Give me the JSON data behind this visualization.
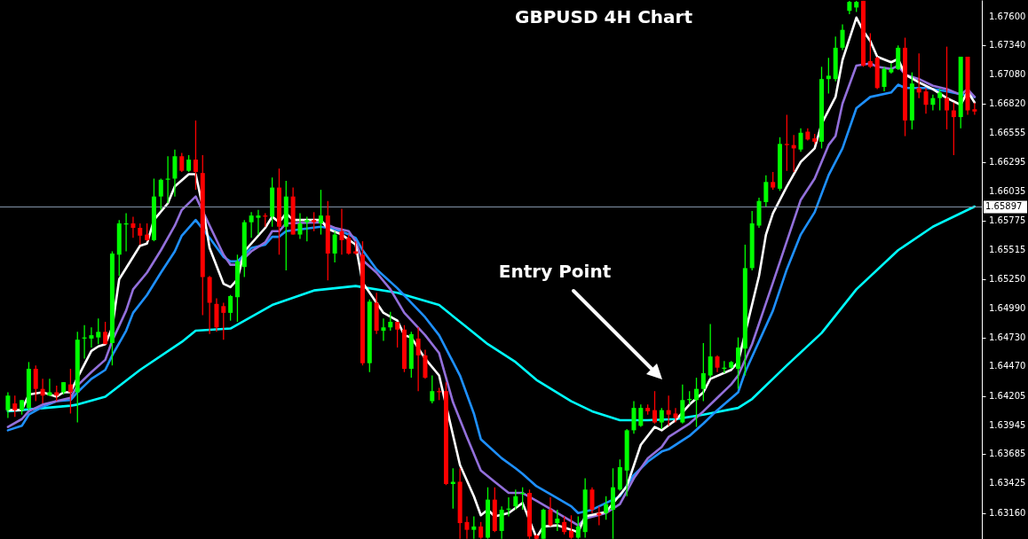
{
  "chart_data": {
    "type": "candlestick",
    "title": "GBPUSD  4H Chart",
    "annotations": [
      "Entry Point"
    ],
    "categories": [
      null,
      null,
      null,
      null,
      null,
      null,
      null,
      null,
      null,
      null,
      null,
      null,
      null,
      null,
      null,
      null,
      null,
      null,
      null,
      null,
      null,
      null,
      null,
      null,
      null,
      null,
      null,
      null,
      null,
      null,
      null,
      null,
      null,
      null,
      null,
      null,
      null,
      null,
      null,
      null,
      null,
      null,
      null,
      null,
      null,
      null,
      null,
      null,
      null,
      null,
      null,
      null,
      null,
      null,
      null,
      null,
      null,
      null,
      null,
      null,
      null,
      null,
      null,
      null,
      null,
      null,
      null,
      null,
      null,
      null,
      null,
      null,
      null,
      null,
      null,
      null,
      null,
      null,
      null,
      null,
      null,
      null,
      null,
      null,
      null,
      null,
      null,
      null,
      null,
      null,
      null,
      null,
      null,
      null,
      null,
      null,
      null,
      null,
      null,
      null,
      null,
      null,
      null,
      null,
      null,
      null,
      null,
      null,
      null,
      null,
      null,
      null,
      null,
      null,
      null,
      null,
      null,
      null,
      null,
      null,
      null,
      null,
      null,
      null,
      null,
      null,
      null,
      null,
      null,
      null,
      null,
      null,
      null,
      null,
      null,
      null,
      null,
      null,
      null,
      null
    ],
    "ohlc": [
      [
        1.6408,
        1.6424,
        1.6401,
        1.6421
      ],
      [
        1.6414,
        1.6421,
        1.6402,
        1.6408
      ],
      [
        1.6408,
        1.6417,
        1.6404,
        1.6417
      ],
      [
        1.641,
        1.6451,
        1.6408,
        1.6445
      ],
      [
        1.6445,
        1.6448,
        1.6416,
        1.6427
      ],
      [
        1.6427,
        1.6436,
        1.6414,
        1.6421
      ],
      [
        1.6421,
        1.6436,
        1.6421,
        1.6424
      ],
      [
        1.6424,
        1.643,
        1.6416,
        1.6421
      ],
      [
        1.6424,
        1.6433,
        1.6422,
        1.6433
      ],
      [
        1.6431,
        1.6445,
        1.6405,
        1.6424
      ],
      [
        1.6424,
        1.6478,
        1.6397,
        1.6471
      ],
      [
        1.6472,
        1.6484,
        1.6454,
        1.6473
      ],
      [
        1.6472,
        1.6482,
        1.6464,
        1.6475
      ],
      [
        1.6473,
        1.649,
        1.6467,
        1.6478
      ],
      [
        1.6478,
        1.6487,
        1.6467,
        1.6467
      ],
      [
        1.6468,
        1.655,
        1.6448,
        1.6548
      ],
      [
        1.6547,
        1.6578,
        1.6528,
        1.6575
      ],
      [
        1.6574,
        1.6584,
        1.655,
        1.6575
      ],
      [
        1.6575,
        1.6581,
        1.6562,
        1.6571
      ],
      [
        1.6571,
        1.6575,
        1.6556,
        1.6564
      ],
      [
        1.6565,
        1.6575,
        1.6559,
        1.656
      ],
      [
        1.656,
        1.6615,
        1.6559,
        1.6599
      ],
      [
        1.6599,
        1.6615,
        1.6587,
        1.6614
      ],
      [
        1.6614,
        1.6635,
        1.6593,
        1.6615
      ],
      [
        1.6615,
        1.6641,
        1.6599,
        1.6635
      ],
      [
        1.6635,
        1.6638,
        1.6621,
        1.6622
      ],
      [
        1.6622,
        1.6636,
        1.6621,
        1.6632
      ],
      [
        1.6632,
        1.6667,
        1.6605,
        1.6621
      ],
      [
        1.662,
        1.6636,
        1.6493,
        1.6527
      ],
      [
        1.6527,
        1.6528,
        1.6476,
        1.6504
      ],
      [
        1.6503,
        1.6508,
        1.6478,
        1.6482
      ],
      [
        1.6501,
        1.6504,
        1.6471,
        1.6495
      ],
      [
        1.6495,
        1.6511,
        1.6488,
        1.651
      ],
      [
        1.6509,
        1.6547,
        1.6487,
        1.6541
      ],
      [
        1.6536,
        1.6578,
        1.6527,
        1.6576
      ],
      [
        1.6576,
        1.6585,
        1.6562,
        1.6582
      ],
      [
        1.658,
        1.6587,
        1.6565,
        1.6582
      ],
      [
        1.6582,
        1.6584,
        1.6572,
        1.6581
      ],
      [
        1.6581,
        1.6616,
        1.6572,
        1.6607
      ],
      [
        1.6607,
        1.6624,
        1.6547,
        1.6572
      ],
      [
        1.6572,
        1.6613,
        1.6533,
        1.6599
      ],
      [
        1.6599,
        1.6607,
        1.6565,
        1.6565
      ],
      [
        1.6565,
        1.6584,
        1.6561,
        1.6575
      ],
      [
        1.6576,
        1.6581,
        1.6559,
        1.6578
      ],
      [
        1.6578,
        1.6585,
        1.6568,
        1.6576
      ],
      [
        1.6575,
        1.6605,
        1.6565,
        1.6582
      ],
      [
        1.6582,
        1.6595,
        1.6524,
        1.6548
      ],
      [
        1.6548,
        1.6568,
        1.654,
        1.6565
      ],
      [
        1.6568,
        1.6588,
        1.6547,
        1.656
      ],
      [
        1.6562,
        1.6565,
        1.6547,
        1.6548
      ],
      [
        1.655,
        1.6559,
        1.6547,
        1.6548
      ],
      [
        1.6547,
        1.6559,
        1.6448,
        1.645
      ],
      [
        1.645,
        1.6507,
        1.6442,
        1.6505
      ],
      [
        1.6504,
        1.6513,
        1.6476,
        1.6479
      ],
      [
        1.6479,
        1.649,
        1.647,
        1.6482
      ],
      [
        1.6482,
        1.6496,
        1.6479,
        1.6487
      ],
      [
        1.6487,
        1.6487,
        1.6464,
        1.648
      ],
      [
        1.648,
        1.6484,
        1.6442,
        1.6445
      ],
      [
        1.6445,
        1.6478,
        1.6437,
        1.6476
      ],
      [
        1.6472,
        1.6482,
        1.6425,
        1.6457
      ],
      [
        1.6457,
        1.6462,
        1.6436,
        1.6437
      ],
      [
        1.6416,
        1.6439,
        1.6414,
        1.6425
      ],
      [
        1.6425,
        1.6428,
        1.6417,
        1.6424
      ],
      [
        1.6425,
        1.6433,
        1.6341,
        1.6342
      ],
      [
        1.6342,
        1.6356,
        1.632,
        1.6344
      ],
      [
        1.6344,
        1.6356,
        1.6293,
        1.6307
      ],
      [
        1.6308,
        1.6313,
        1.6293,
        1.6301
      ],
      [
        1.6301,
        1.6313,
        1.6293,
        1.6304
      ],
      [
        1.6304,
        1.6308,
        1.6293,
        1.6294
      ],
      [
        1.6294,
        1.6339,
        1.6293,
        1.6328
      ],
      [
        1.6328,
        1.6339,
        1.6299,
        1.63
      ],
      [
        1.63,
        1.6322,
        1.6293,
        1.6319
      ],
      [
        1.6319,
        1.633,
        1.6313,
        1.632
      ],
      [
        1.6322,
        1.6337,
        1.6319,
        1.6331
      ],
      [
        1.6333,
        1.6339,
        1.6319,
        1.6334
      ],
      [
        1.6334,
        1.6337,
        1.6293,
        1.6295
      ],
      [
        1.6296,
        1.6297,
        1.6293,
        1.6293
      ],
      [
        1.6293,
        1.632,
        1.6293,
        1.6319
      ],
      [
        1.6319,
        1.633,
        1.6304,
        1.6305
      ],
      [
        1.6307,
        1.6319,
        1.63,
        1.6311
      ],
      [
        1.6308,
        1.6313,
        1.6297,
        1.6299
      ],
      [
        1.63,
        1.6314,
        1.6293,
        1.6294
      ],
      [
        1.6294,
        1.6313,
        1.6293,
        1.6304
      ],
      [
        1.6299,
        1.6347,
        1.6294,
        1.6337
      ],
      [
        1.6337,
        1.6339,
        1.6316,
        1.6319
      ],
      [
        1.6316,
        1.6322,
        1.6305,
        1.6314
      ],
      [
        1.6316,
        1.6331,
        1.631,
        1.6324
      ],
      [
        1.6319,
        1.6356,
        1.6293,
        1.6339
      ],
      [
        1.6337,
        1.6364,
        1.6336,
        1.6357
      ],
      [
        1.6354,
        1.6391,
        1.6331,
        1.639
      ],
      [
        1.639,
        1.6416,
        1.6387,
        1.641
      ],
      [
        1.6394,
        1.6413,
        1.6393,
        1.641
      ],
      [
        1.641,
        1.6413,
        1.6404,
        1.6407
      ],
      [
        1.6408,
        1.6425,
        1.6396,
        1.6397
      ],
      [
        1.6397,
        1.641,
        1.6391,
        1.6408
      ],
      [
        1.6408,
        1.6421,
        1.6394,
        1.6404
      ],
      [
        1.6405,
        1.641,
        1.6397,
        1.6401
      ],
      [
        1.6397,
        1.6431,
        1.6396,
        1.6417
      ],
      [
        1.6417,
        1.6425,
        1.6413,
        1.6418
      ],
      [
        1.6417,
        1.6437,
        1.6393,
        1.6427
      ],
      [
        1.6427,
        1.6468,
        1.6416,
        1.6441
      ],
      [
        1.6439,
        1.6485,
        1.6437,
        1.6456
      ],
      [
        1.6456,
        1.6457,
        1.6442,
        1.6446
      ],
      [
        1.6445,
        1.6452,
        1.6441,
        1.6446
      ],
      [
        1.6446,
        1.6452,
        1.6445,
        1.6451
      ],
      [
        1.6445,
        1.6473,
        1.6427,
        1.6464
      ],
      [
        1.6463,
        1.6556,
        1.6439,
        1.6535
      ],
      [
        1.6535,
        1.6586,
        1.6533,
        1.6575
      ],
      [
        1.6573,
        1.6598,
        1.6571,
        1.6595
      ],
      [
        1.6594,
        1.6618,
        1.659,
        1.6612
      ],
      [
        1.6612,
        1.6621,
        1.6605,
        1.6607
      ],
      [
        1.6606,
        1.6652,
        1.6604,
        1.6646
      ],
      [
        1.6646,
        1.6672,
        1.6622,
        1.6645
      ],
      [
        1.6645,
        1.6654,
        1.6621,
        1.6642
      ],
      [
        1.6641,
        1.666,
        1.6639,
        1.6656
      ],
      [
        1.6657,
        1.666,
        1.6649,
        1.665
      ],
      [
        1.6651,
        1.6655,
        1.6646,
        1.6648
      ],
      [
        1.6648,
        1.6715,
        1.6642,
        1.6704
      ],
      [
        1.6704,
        1.6723,
        1.6691,
        1.6707
      ],
      [
        1.6704,
        1.6742,
        1.6702,
        1.6732
      ],
      [
        1.6732,
        1.6753,
        1.673,
        1.6748
      ],
      [
        1.6765,
        1.6774,
        1.6762,
        1.6773
      ],
      [
        1.6768,
        1.6774,
        1.6764,
        1.6773
      ],
      [
        1.6774,
        1.6774,
        1.6715,
        1.6716
      ],
      [
        1.672,
        1.6745,
        1.6714,
        1.6715
      ],
      [
        1.6723,
        1.6724,
        1.6695,
        1.6696
      ],
      [
        1.6697,
        1.6715,
        1.6693,
        1.6713
      ],
      [
        1.671,
        1.6718,
        1.6709,
        1.6713
      ],
      [
        1.6713,
        1.6734,
        1.6712,
        1.6732
      ],
      [
        1.6732,
        1.6741,
        1.6653,
        1.6667
      ],
      [
        1.6667,
        1.671,
        1.6659,
        1.67
      ],
      [
        1.6696,
        1.6727,
        1.6687,
        1.6692
      ],
      [
        1.6693,
        1.6696,
        1.6673,
        1.6681
      ],
      [
        1.6681,
        1.669,
        1.6676,
        1.6687
      ],
      [
        1.6687,
        1.6695,
        1.6676,
        1.6692
      ],
      [
        1.6687,
        1.6733,
        1.6659,
        1.6676
      ],
      [
        1.6676,
        1.6683,
        1.6636,
        1.667
      ],
      [
        1.667,
        1.6724,
        1.666,
        1.6724
      ],
      [
        1.6724,
        1.6724,
        1.6672,
        1.6676
      ],
      [
        1.6677,
        1.6683,
        1.6672,
        1.6675
      ]
    ],
    "series": [
      {
        "type": "line",
        "color": "#00ffff",
        "values": [
          1.6407,
          null,
          null,
          null,
          null,
          null,
          null,
          null,
          null,
          1.6412,
          1.6413,
          null,
          null,
          null,
          1.642,
          null,
          null,
          null,
          null,
          1.6444,
          null,
          null,
          null,
          null,
          null,
          1.6469,
          null,
          1.6479,
          null,
          null,
          null,
          null,
          1.6481,
          null,
          null,
          null,
          null,
          null,
          1.6502,
          null,
          null,
          null,
          null,
          null,
          1.6515,
          null,
          null,
          null,
          null,
          null,
          1.6519,
          null,
          null,
          null,
          null,
          null,
          1.6513,
          null,
          null,
          null,
          null,
          null,
          1.6502,
          null,
          null,
          null,
          1.6482,
          null,
          null,
          1.6467,
          null,
          null,
          null,
          1.6451,
          null,
          null,
          1.6435,
          null,
          null,
          null,
          null,
          1.6416,
          null,
          null,
          1.6407,
          null,
          null,
          null,
          1.6399,
          null,
          null,
          null,
          1.6399,
          null,
          null,
          null,
          1.64,
          null,
          null,
          null,
          1.6404,
          null,
          null,
          null,
          null,
          1.641,
          null,
          1.6418,
          null,
          null,
          null,
          null,
          1.6448,
          null,
          null,
          null,
          null,
          1.6477,
          null,
          null,
          null,
          null,
          1.6516,
          null,
          null,
          null,
          null,
          null,
          1.6551,
          null,
          null,
          null,
          null,
          1.6572,
          null,
          null,
          null,
          null,
          null,
          1.659
        ]
      },
      {
        "type": "line",
        "color": "#1e90ff",
        "values": [
          1.639,
          null,
          1.6394,
          1.6404,
          null,
          1.6411,
          null,
          1.6416,
          null,
          1.6417,
          1.6424,
          null,
          1.6436,
          null,
          1.6444,
          1.6457,
          null,
          1.6479,
          1.6495,
          null,
          1.6511,
          null,
          1.6531,
          null,
          1.655,
          1.6564,
          null,
          1.6578,
          null,
          1.6562,
          null,
          1.6545,
          1.6541,
          1.6541,
          null,
          1.6553,
          null,
          1.6556,
          1.6563,
          1.6563,
          1.6568,
          null,
          null,
          null,
          null,
          1.6572,
          null,
          1.657,
          null,
          1.6565,
          1.6562,
          1.6551,
          null,
          1.6534,
          null,
          null,
          1.6517,
          null,
          null,
          null,
          1.6491,
          null,
          1.6475,
          null,
          null,
          1.6439,
          null,
          1.6405,
          1.6382,
          null,
          null,
          1.6365,
          null,
          1.6356,
          1.6351,
          null,
          1.634,
          null,
          1.6333,
          null,
          null,
          1.6322,
          1.6316,
          null,
          1.6319,
          null,
          null,
          null,
          1.6331,
          null,
          1.635,
          null,
          1.6362,
          null,
          1.6371,
          1.6373,
          null,
          null,
          1.6385,
          null,
          1.6396,
          null,
          1.6408,
          null,
          null,
          1.6424,
          1.6442,
          null,
          null,
          null,
          1.6497,
          null,
          1.6534,
          null,
          1.6565,
          null,
          1.6585,
          null,
          1.6618,
          null,
          1.6642,
          null,
          1.6678,
          null,
          1.6688,
          null,
          null,
          1.6692,
          1.6699,
          1.6696,
          null,
          null,
          1.6696,
          null,
          null,
          1.6693,
          null,
          null,
          null,
          1.6688
        ]
      },
      {
        "type": "line",
        "color": "#9370db",
        "values": [
          1.6393,
          null,
          1.64,
          1.6407,
          null,
          1.6413,
          null,
          1.6416,
          null,
          1.6419,
          1.643,
          null,
          1.6442,
          null,
          1.6453,
          1.647,
          null,
          1.6497,
          1.6516,
          null,
          1.6531,
          null,
          1.6551,
          null,
          1.6573,
          1.6587,
          null,
          1.6599,
          null,
          null,
          null,
          1.6547,
          1.6538,
          1.6538,
          null,
          1.655,
          null,
          1.6558,
          1.6568,
          1.6568,
          1.6575,
          null,
          null,
          null,
          null,
          1.6576,
          null,
          1.6571,
          null,
          1.6568,
          1.6559,
          1.6542,
          null,
          1.6531,
          null,
          1.6516,
          null,
          1.6495,
          null,
          null,
          1.6475,
          null,
          1.6459,
          null,
          1.6415,
          null,
          1.6384,
          null,
          1.6354,
          null,
          1.6344,
          null,
          1.6334,
          null,
          1.6334,
          null,
          1.6327,
          null,
          null,
          1.6316,
          null,
          null,
          1.6305,
          1.6311,
          null,
          null,
          1.6316,
          null,
          1.6324,
          null,
          1.6347,
          null,
          1.6365,
          null,
          1.6375,
          1.6384,
          null,
          null,
          1.6396,
          null,
          1.6407,
          null,
          1.6419,
          null,
          1.6431,
          1.6439,
          null,
          1.6467,
          null,
          null,
          1.6522,
          null,
          1.6559,
          null,
          1.6596,
          null,
          1.6615,
          null,
          1.6645,
          1.6653,
          1.6682,
          null,
          1.6716,
          null,
          1.6718,
          1.6715,
          null,
          1.6713,
          1.6716,
          1.6708,
          null,
          1.6704,
          null,
          1.6698,
          null,
          1.6695,
          null,
          1.669,
          1.6695,
          1.6688
        ]
      },
      {
        "type": "line",
        "color": "#ffffff",
        "values": [
          1.6408,
          null,
          1.6408,
          1.6422,
          null,
          1.6424,
          null,
          1.642,
          1.6424,
          1.6424,
          1.6437,
          null,
          1.6461,
          1.6465,
          1.6467,
          1.6482,
          1.6525,
          null,
          1.6545,
          1.6555,
          1.6557,
          1.6578,
          null,
          1.6593,
          1.6608,
          null,
          1.6619,
          1.6619,
          1.659,
          1.6553,
          null,
          1.6521,
          1.6518,
          1.6525,
          1.655,
          null,
          null,
          1.6571,
          1.6581,
          1.6576,
          1.6584,
          1.6578,
          null,
          null,
          null,
          1.6578,
          1.657,
          null,
          1.6565,
          null,
          1.6556,
          1.6522,
          null,
          1.6504,
          1.6495,
          null,
          1.6488,
          1.6475,
          1.6473,
          null,
          1.6454,
          null,
          1.6439,
          null,
          null,
          1.6359,
          null,
          1.6331,
          1.6314,
          1.6319,
          1.6313,
          null,
          1.6316,
          null,
          1.6325,
          null,
          1.6294,
          1.6304,
          null,
          1.6305,
          null,
          null,
          1.6299,
          1.6313,
          null,
          null,
          1.6317,
          null,
          null,
          1.634,
          null,
          1.6377,
          null,
          1.6393,
          1.639,
          null,
          1.6399,
          null,
          1.6413,
          null,
          1.6424,
          1.6436,
          null,
          null,
          1.6444,
          1.6451,
          null,
          null,
          1.6528,
          1.6565,
          1.6584,
          null,
          1.6608,
          null,
          1.663,
          null,
          1.6642,
          1.6664,
          null,
          1.6688,
          1.6721,
          null,
          1.6759,
          1.6747,
          1.6738,
          1.6724,
          null,
          1.6719,
          1.6722,
          1.6708,
          null,
          1.6701,
          null,
          1.6695,
          null,
          1.6687,
          null,
          1.6681,
          1.6693,
          1.6683
        ]
      }
    ],
    "ylim": [
      1.62928,
      1.67747
    ],
    "yticks": [
      {
        "value": 1.676,
        "label": "1.67600"
      },
      {
        "value": 1.6734,
        "label": "1.67340"
      },
      {
        "value": 1.6708,
        "label": "1.67080"
      },
      {
        "value": 1.6682,
        "label": "1.66820"
      },
      {
        "value": 1.66555,
        "label": "1.66555"
      },
      {
        "value": 1.66295,
        "label": "1.66295"
      },
      {
        "value": 1.66035,
        "label": "1.66035"
      },
      {
        "value": 1.65775,
        "label": "1.65775"
      },
      {
        "value": 1.65515,
        "label": "1.65515"
      },
      {
        "value": 1.6525,
        "label": "1.65250"
      },
      {
        "value": 1.6499,
        "label": "1.64990"
      },
      {
        "value": 1.6473,
        "label": "1.64730"
      },
      {
        "value": 1.6447,
        "label": "1.64470"
      },
      {
        "value": 1.64205,
        "label": "1.64205"
      },
      {
        "value": 1.63945,
        "label": "1.63945"
      },
      {
        "value": 1.63685,
        "label": "1.63685"
      },
      {
        "value": 1.63425,
        "label": "1.63425"
      },
      {
        "value": 1.6316,
        "label": "1.63160"
      }
    ],
    "tick_labels": "y",
    "ref_lines": [
      {
        "axis": "y",
        "value": 1.65897,
        "label": "1.65897",
        "color": "#8a9bb0"
      }
    ]
  }
}
